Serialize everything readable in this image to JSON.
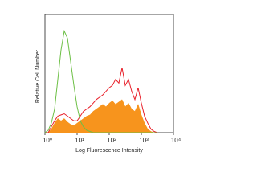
{
  "chart_data": {
    "type": "area",
    "xlabel": "Log Fluorescence Intensity",
    "ylabel": "Relative Cell Number",
    "x": [
      1,
      1.26,
      1.58,
      2,
      2.51,
      3.16,
      3.98,
      5.01,
      6.31,
      7.94,
      10,
      12.6,
      15.8,
      20,
      25.1,
      31.6,
      39.8,
      50.1,
      63.1,
      79.4,
      100,
      126,
      158,
      200,
      251,
      316,
      398,
      501,
      631,
      794,
      1000,
      1259,
      1585,
      1995,
      2512,
      3162
    ],
    "xlim": [
      1,
      10000
    ],
    "xticks": [
      {
        "value": 1,
        "label": "10⁰"
      },
      {
        "value": 10,
        "label": "10¹"
      },
      {
        "value": 100,
        "label": "10²"
      },
      {
        "value": 1000,
        "label": "10³"
      },
      {
        "value": 10000,
        "label": "10⁴"
      }
    ],
    "xscale": "log",
    "ylim": [
      0,
      100
    ],
    "series": [
      {
        "color": "#f7941d",
        "fill": true,
        "values": [
          0,
          0,
          3,
          8,
          12,
          10,
          12,
          9,
          7,
          6,
          8,
          10,
          12,
          14,
          15,
          18,
          20,
          22,
          24,
          22,
          25,
          27,
          24,
          26,
          28,
          22,
          25,
          20,
          18,
          24,
          15,
          8,
          3,
          1,
          0,
          0
        ]
      },
      {
        "color": "#e8202a",
        "fill": false,
        "values": [
          0,
          0,
          5,
          10,
          14,
          15,
          16,
          14,
          12,
          10,
          10,
          14,
          18,
          20,
          22,
          25,
          28,
          30,
          32,
          35,
          38,
          40,
          45,
          42,
          55,
          40,
          45,
          35,
          28,
          38,
          25,
          14,
          8,
          3,
          1,
          0
        ]
      },
      {
        "color": "#6cbf45",
        "fill": false,
        "values": [
          0,
          2,
          8,
          20,
          45,
          70,
          86,
          80,
          60,
          40,
          22,
          10,
          5,
          2,
          1,
          0,
          0,
          0,
          0,
          0,
          0,
          0,
          0,
          0,
          0,
          0,
          0,
          0,
          0,
          0,
          0,
          0,
          0,
          0,
          0,
          0
        ]
      }
    ]
  }
}
